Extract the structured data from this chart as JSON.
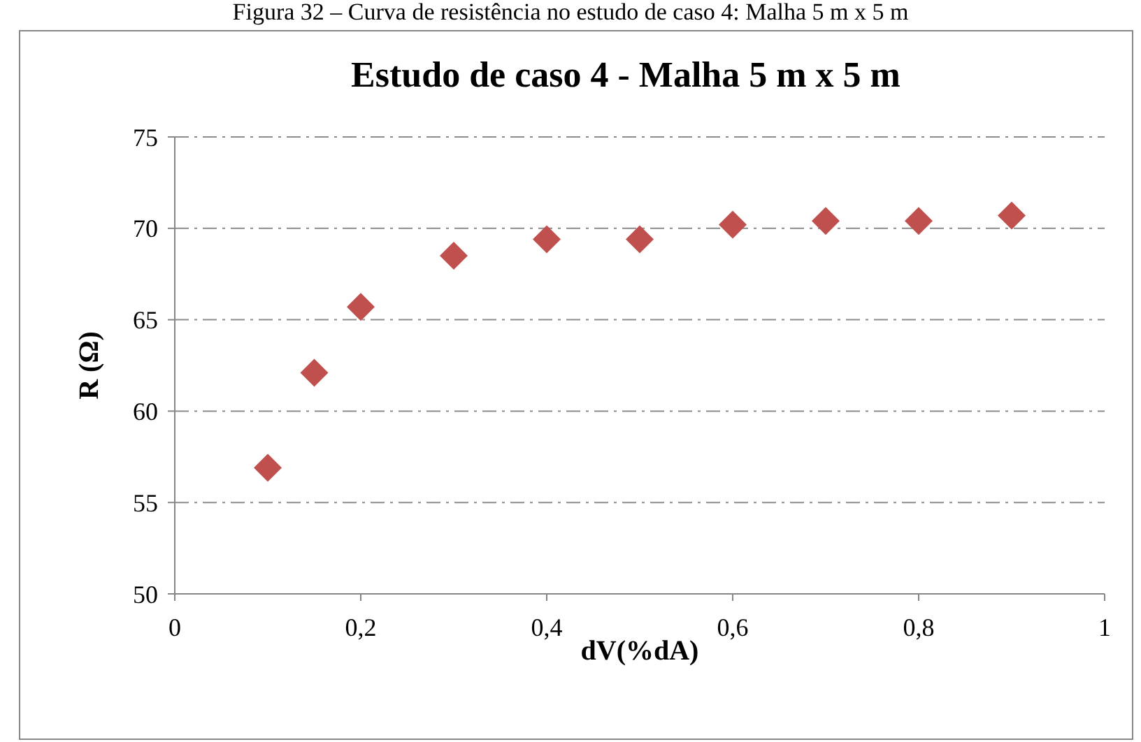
{
  "chart_data": {
    "type": "scatter",
    "title": "Estudo de caso 4 - Malha 5 m x 5 m",
    "xlabel": "dV(%dA)",
    "ylabel": "R (Ω)",
    "annotations": [
      "Figura 32 – Curva de resistência no estudo de caso 4: Malha 5 m x 5 m"
    ],
    "x": [
      0.1,
      0.15,
      0.2,
      0.3,
      0.4,
      0.5,
      0.6,
      0.7,
      0.8,
      0.9
    ],
    "series": [
      {
        "color": "#c0504d",
        "values": [
          56.9,
          62.1,
          65.7,
          68.5,
          69.4,
          69.4,
          70.2,
          70.4,
          70.4,
          70.7
        ]
      }
    ],
    "xlim": [
      0,
      1
    ],
    "xticks": [
      0,
      {
        "value": 0.2,
        "label": "0,2"
      },
      {
        "value": 0.4,
        "label": "0,4"
      },
      {
        "value": 0.6,
        "label": "0,6"
      },
      {
        "value": 0.8,
        "label": "0,8"
      },
      1
    ],
    "ylim": [
      50,
      75
    ],
    "yticks": [
      50,
      55,
      60,
      65,
      70,
      75
    ],
    "grid": "y",
    "marker": "diamond"
  }
}
